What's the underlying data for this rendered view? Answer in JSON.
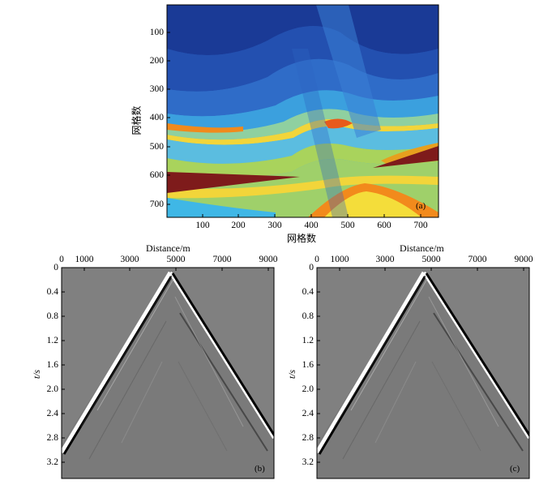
{
  "panel_a": {
    "tag": "(a)",
    "xlabel": "网格数",
    "ylabel": "网格数",
    "xticks": [
      "100",
      "200",
      "300",
      "400",
      "500",
      "600",
      "700"
    ],
    "yticks": [
      "100",
      "200",
      "300",
      "400",
      "500",
      "600",
      "700"
    ],
    "colors": {
      "deep": "#1b3f9a",
      "mid": "#3a82d6",
      "cyan": "#3fb7e6",
      "green": "#a8d35a",
      "yellow": "#f4dd3a",
      "orange": "#f28a1c",
      "red": "#d9461c",
      "salt": "#7e1b1b"
    }
  },
  "panel_b": {
    "tag": "(b)",
    "xlabel": "Distance/m",
    "ylabel": "t/s",
    "xticks": [
      "0",
      "1000",
      "3000",
      "5000",
      "7000",
      "9000"
    ],
    "yticks": [
      "0",
      "0.4",
      "0.8",
      "1.2",
      "1.6",
      "2.0",
      "2.4",
      "2.8",
      "3.2"
    ]
  },
  "panel_c": {
    "tag": "(c)",
    "xlabel": "Distance/m",
    "ylabel": "t/s",
    "xticks": [
      "0",
      "1000",
      "3000",
      "5000",
      "7000",
      "9000"
    ],
    "yticks": [
      "0",
      "0.4",
      "0.8",
      "1.2",
      "1.6",
      "2.0",
      "2.4",
      "2.8",
      "3.2"
    ]
  }
}
